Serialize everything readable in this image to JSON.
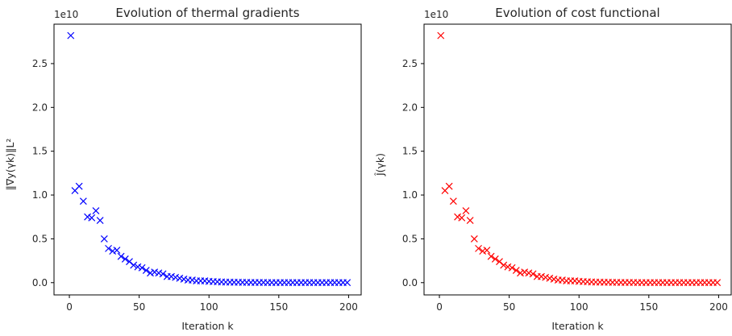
{
  "chart_data": [
    {
      "type": "scatter",
      "title": "Evolution of thermal gradients",
      "xlabel": "Iteration k",
      "ylabel": "‖∇y(γk)‖L²",
      "offset_text": "1e10",
      "marker": "x",
      "color": "#0000ff",
      "xlim": [
        -11,
        209
      ],
      "ylim": [
        -0.14,
        2.95
      ],
      "xticks": [
        0,
        50,
        100,
        150,
        200
      ],
      "xtick_labels": [
        "0",
        "50",
        "100",
        "150",
        "200"
      ],
      "yticks": [
        0.0,
        0.5,
        1.0,
        1.5,
        2.0,
        2.5
      ],
      "ytick_labels": [
        "0.0",
        "0.5",
        "1.0",
        "1.5",
        "2.0",
        "2.5"
      ],
      "grid": false,
      "legend": "none",
      "series": [
        {
          "x": [
            1,
            4,
            7,
            10,
            13,
            16,
            19,
            22,
            25,
            28,
            31,
            34,
            37,
            40,
            43,
            46,
            49,
            52,
            55,
            58,
            61,
            64,
            67,
            70,
            73,
            76,
            79,
            82,
            85,
            88,
            91,
            94,
            97,
            100,
            103,
            106,
            109,
            112,
            115,
            118,
            121,
            124,
            127,
            130,
            133,
            136,
            139,
            142,
            145,
            148,
            151,
            154,
            157,
            160,
            163,
            166,
            169,
            172,
            175,
            178,
            181,
            184,
            187,
            190,
            193,
            196,
            199
          ],
          "y": [
            2.82,
            1.05,
            1.1,
            0.93,
            0.75,
            0.74,
            0.82,
            0.71,
            0.5,
            0.39,
            0.36,
            0.37,
            0.3,
            0.27,
            0.24,
            0.2,
            0.18,
            0.17,
            0.14,
            0.11,
            0.12,
            0.11,
            0.1,
            0.07,
            0.07,
            0.06,
            0.05,
            0.04,
            0.03,
            0.03,
            0.02,
            0.02,
            0.02,
            0.015,
            0.012,
            0.01,
            0.008,
            0.006,
            0.005,
            0.004,
            0.004,
            0.003,
            0.003,
            0.002,
            0.002,
            0.002,
            0.002,
            0.001,
            0.001,
            0.001,
            0.001,
            0.001,
            0.001,
            0.001,
            0.001,
            0.001,
            0.001,
            0.001,
            0.001,
            0.001,
            0.001,
            0.001,
            0.001,
            0.001,
            0.001,
            0.001,
            0.001
          ]
        }
      ]
    },
    {
      "type": "scatter",
      "title": "Evolution of cost functional",
      "xlabel": "Iteration k",
      "ylabel": "Ĵ(γk)",
      "offset_text": "1e10",
      "marker": "x",
      "color": "#ff0000",
      "xlim": [
        -11,
        209
      ],
      "ylim": [
        -0.14,
        2.95
      ],
      "xticks": [
        0,
        50,
        100,
        150,
        200
      ],
      "xtick_labels": [
        "0",
        "50",
        "100",
        "150",
        "200"
      ],
      "yticks": [
        0.0,
        0.5,
        1.0,
        1.5,
        2.0,
        2.5
      ],
      "ytick_labels": [
        "0.0",
        "0.5",
        "1.0",
        "1.5",
        "2.0",
        "2.5"
      ],
      "grid": false,
      "legend": "none",
      "series": [
        {
          "x": [
            1,
            4,
            7,
            10,
            13,
            16,
            19,
            22,
            25,
            28,
            31,
            34,
            37,
            40,
            43,
            46,
            49,
            52,
            55,
            58,
            61,
            64,
            67,
            70,
            73,
            76,
            79,
            82,
            85,
            88,
            91,
            94,
            97,
            100,
            103,
            106,
            109,
            112,
            115,
            118,
            121,
            124,
            127,
            130,
            133,
            136,
            139,
            142,
            145,
            148,
            151,
            154,
            157,
            160,
            163,
            166,
            169,
            172,
            175,
            178,
            181,
            184,
            187,
            190,
            193,
            196,
            199
          ],
          "y": [
            2.82,
            1.05,
            1.1,
            0.93,
            0.75,
            0.74,
            0.82,
            0.71,
            0.5,
            0.39,
            0.36,
            0.37,
            0.3,
            0.27,
            0.24,
            0.2,
            0.18,
            0.17,
            0.14,
            0.11,
            0.12,
            0.11,
            0.1,
            0.07,
            0.07,
            0.06,
            0.05,
            0.04,
            0.03,
            0.03,
            0.02,
            0.02,
            0.02,
            0.015,
            0.012,
            0.01,
            0.008,
            0.006,
            0.005,
            0.004,
            0.004,
            0.003,
            0.003,
            0.002,
            0.002,
            0.002,
            0.002,
            0.001,
            0.001,
            0.001,
            0.001,
            0.001,
            0.001,
            0.001,
            0.001,
            0.001,
            0.001,
            0.001,
            0.001,
            0.001,
            0.001,
            0.001,
            0.001,
            0.001,
            0.001,
            0.001,
            0.001
          ]
        }
      ]
    }
  ]
}
